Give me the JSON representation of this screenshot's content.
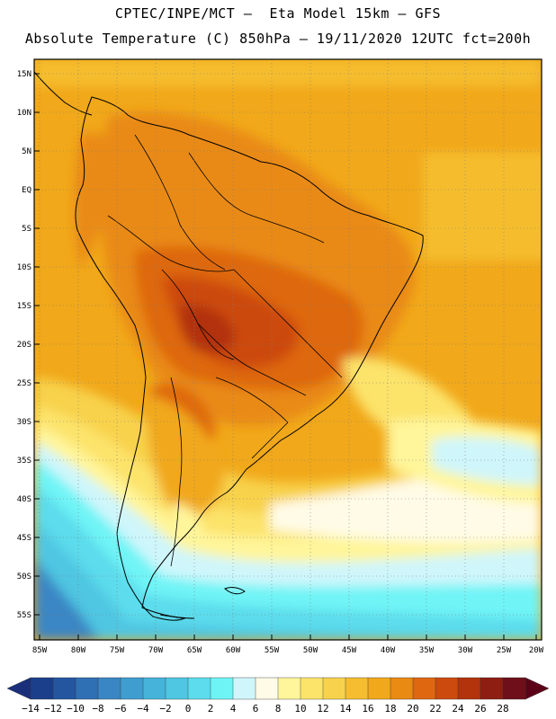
{
  "header": {
    "title_line1": "CPTEC/INPE/MCT –  Eta Model 15km – GFS",
    "title_line2": "Absolute Temperature (C) 850hPa – 19/11/2020 12UTC fct=200h"
  },
  "axes": {
    "lat_labels": [
      "15N",
      "10N",
      "5N",
      "EQ",
      "5S",
      "10S",
      "15S",
      "20S",
      "25S",
      "30S",
      "35S",
      "40S",
      "45S",
      "50S",
      "55S"
    ],
    "lon_labels": [
      "85W",
      "80W",
      "75W",
      "70W",
      "65W",
      "60W",
      "55W",
      "50W",
      "45W",
      "40W",
      "35W",
      "30W",
      "25W",
      "20W"
    ]
  },
  "colorbar": {
    "labels": [
      "-14",
      "-12",
      "-10",
      "-8",
      "-6",
      "-4",
      "-2",
      "0",
      "2",
      "4",
      "6",
      "8",
      "10",
      "12",
      "14",
      "16",
      "18",
      "20",
      "22",
      "24",
      "26",
      "28"
    ],
    "colors": [
      "#1c3f8c",
      "#2456a0",
      "#2f6fb4",
      "#3a86c4",
      "#3f9dd0",
      "#45b3da",
      "#4fc6e2",
      "#5cdcec",
      "#6ff4f6",
      "#cff6fb",
      "#fffbe6",
      "#fff59a",
      "#fce36a",
      "#f8d24c",
      "#f5bd2f",
      "#f1a81a",
      "#e98a12",
      "#de6710",
      "#cc4a0e",
      "#b2330c",
      "#8e1e12",
      "#6e0f1a"
    ],
    "under_color": "#1a2f7a",
    "over_color": "#5c0218"
  },
  "theme": {
    "ocean_warm": "#f1a81a",
    "ocean_mid": "#f5bd2f",
    "ocean_cool": "#fce36a"
  }
}
